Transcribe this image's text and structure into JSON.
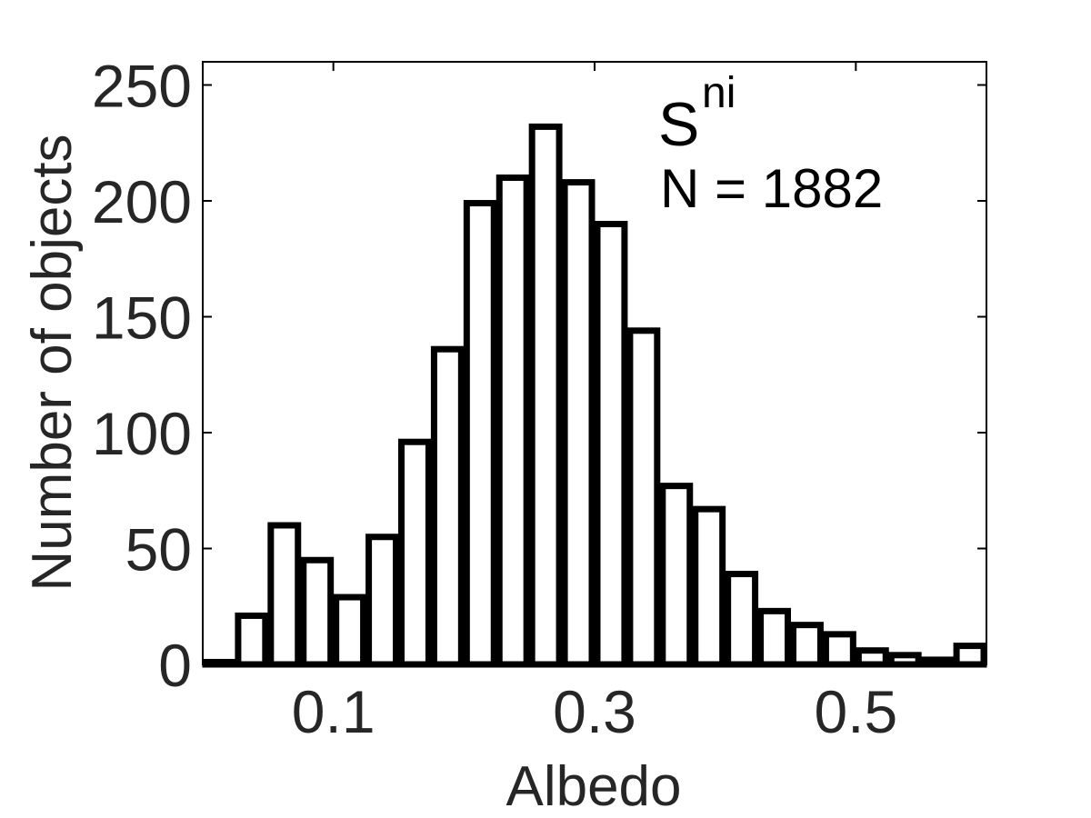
{
  "chart_data": {
    "type": "bar",
    "title": "",
    "xlabel": "Albedo",
    "ylabel": "Number of objects",
    "xlim": [
      0.0,
      0.6
    ],
    "ylim": [
      0,
      260
    ],
    "xticks": [
      0.1,
      0.3,
      0.5
    ],
    "xtick_labels": [
      "0.1",
      "0.3",
      "0.5"
    ],
    "yticks": [
      0,
      50,
      100,
      150,
      200,
      250
    ],
    "ytick_labels": [
      "0",
      "50",
      "100",
      "150",
      "200",
      "250"
    ],
    "grid": false,
    "bin_width": 0.025,
    "bin_centers": [
      0.0125,
      0.0375,
      0.0625,
      0.0875,
      0.1125,
      0.1375,
      0.1625,
      0.1875,
      0.2125,
      0.2375,
      0.2625,
      0.2875,
      0.3125,
      0.3375,
      0.3625,
      0.3875,
      0.4125,
      0.4375,
      0.4625,
      0.4875,
      0.5125,
      0.5375,
      0.5625,
      0.5875
    ],
    "values": [
      1,
      21,
      60,
      45,
      29,
      55,
      96,
      136,
      199,
      210,
      232,
      208,
      190,
      144,
      77,
      67,
      39,
      23,
      17,
      13,
      6,
      4,
      2,
      8
    ],
    "annotations": {
      "label_main": "S",
      "label_sup": "ni",
      "count_text": "N = 1882"
    },
    "colors": {
      "bar_fill": "#ffffff",
      "bar_edge": "#000000",
      "axis": "#000000",
      "text": "#262626"
    }
  }
}
